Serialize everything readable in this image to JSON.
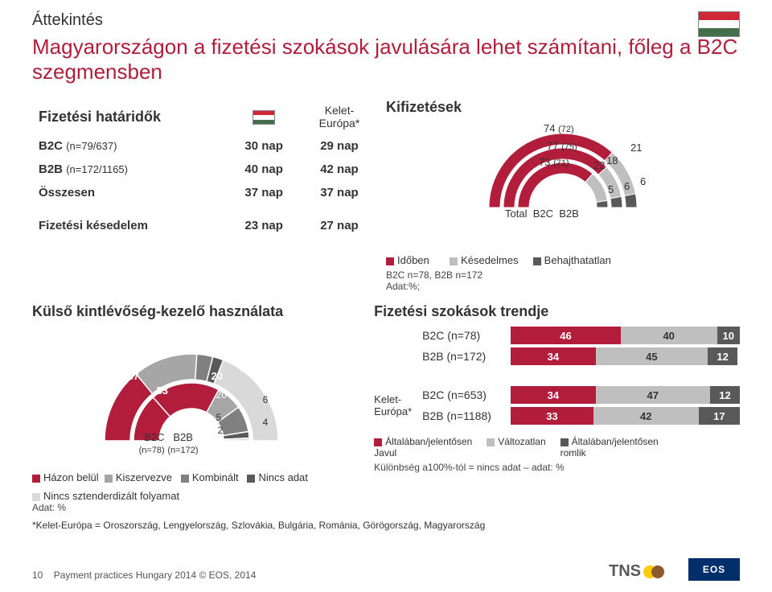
{
  "colors": {
    "brand_red": "#b11d3a",
    "text": "#333333",
    "seg_red": "#b11d3a",
    "seg_grey": "#bfbfbf",
    "seg_dark": "#595959",
    "donut_red": "#b11d3a",
    "donut_grey1": "#a6a6a6",
    "donut_grey2": "#808080",
    "donut_grey3": "#595959",
    "donut_grey4": "#d9d9d9",
    "flag_red": "#ce2939",
    "flag_white": "#ffffff",
    "flag_green": "#436f4d",
    "eos_blue": "#002f6c",
    "tns_yellow": "#ffcc00",
    "tns_brown": "#8b5a2b"
  },
  "header": {
    "overview": "Áttekintés",
    "title": "Magyarországon a fizetési szokások javulására lehet számítani, főleg a B2C szegmensben"
  },
  "terms": {
    "title": "Fizetési határidők",
    "col2_label": "Kelet-\nEurópa*",
    "rows": [
      {
        "label": "B2C",
        "sub": "(n=79/637)",
        "v1": "30 nap",
        "v2": "29 nap"
      },
      {
        "label": "B2B",
        "sub": "(n=172/1165)",
        "v1": "40 nap",
        "v2": "42 nap"
      },
      {
        "label": "Összesen",
        "sub": "",
        "v1": "37 nap",
        "v2": "37 nap"
      }
    ],
    "delay_label": "Fizetési késedelem",
    "delay_v1": "23 nap",
    "delay_v2": "27 nap"
  },
  "payments": {
    "title": "Kifizetések",
    "rings": [
      {
        "name": "Total",
        "ontime": 74,
        "ontime_prev": 72,
        "late": 21,
        "uncollect": 6
      },
      {
        "name": "B2C",
        "ontime": 77,
        "ontime_prev": 75,
        "late": 18,
        "uncollect": 6
      },
      {
        "name": "B2B",
        "ontime": 73,
        "ontime_prev": 71,
        "late": 22,
        "uncollect": 5
      }
    ],
    "axis_labels": [
      "Total",
      "B2C",
      "B2B"
    ],
    "legend": [
      "Időben",
      "Késedelmes",
      "Behajthatatlan"
    ],
    "legend_colors": [
      "#b11d3a",
      "#bfbfbf",
      "#595959"
    ],
    "note": "B2C n=78, B2B n=172\nAdat:%;"
  },
  "external": {
    "title": "Külső kintlévőség-kezelő használata",
    "inner": {
      "name": "B2C",
      "sub": "(n=78)",
      "values": [
        37,
        53,
        20,
        20,
        5,
        2
      ],
      "labels_show": [
        37,
        53,
        20,
        5,
        2
      ]
    },
    "outer": {
      "name": "B2B",
      "sub": "(n=172)",
      "values": [
        28,
        24,
        6,
        4
      ],
      "labels_show": [
        28,
        24,
        6,
        4
      ]
    },
    "legend": [
      {
        "label": "Házon belül",
        "color": "#b11d3a"
      },
      {
        "label": "Kiszervezve",
        "color": "#a6a6a6"
      },
      {
        "label": "Kombinált",
        "color": "#808080"
      },
      {
        "label": "Nincs adat",
        "color": "#595959"
      }
    ],
    "legend2": [
      {
        "label": "Nincs sztenderdizált folyamat",
        "color": "#d9d9d9"
      }
    ],
    "note": "Adat: %"
  },
  "trends": {
    "title": "Fizetési szokások trendje",
    "rows": [
      {
        "group": "",
        "label": "B2C (n=78)",
        "a": 46,
        "b": 40,
        "c": 10
      },
      {
        "group": "",
        "label": "B2B (n=172)",
        "a": 34,
        "b": 45,
        "c": 12
      },
      {
        "group": "Kelet-\nEurópa*",
        "label": "B2C (n=653)",
        "a": 34,
        "b": 47,
        "c": 12
      },
      {
        "group": "Kelet-\nEurópa*",
        "label": "B2B (n=1188)",
        "a": 33,
        "b": 42,
        "c": 17
      }
    ],
    "legend": [
      {
        "label": "Általában/jelentősen\nJavul",
        "color": "#b11d3a"
      },
      {
        "label": "Változatlan",
        "color": "#bfbfbf"
      },
      {
        "label": "Általában/jelentősen\nromlik",
        "color": "#595959"
      }
    ],
    "note": "Különbség a100%-tól = nincs adat – adat: %"
  },
  "footnote": "*Kelet-Európa = Oroszország, Lengyelország, Szlovákia, Bulgária, Románia, Görögország, Magyarország",
  "footer": {
    "page": "10",
    "source": "Payment practices Hungary 2014 © EOS, 2014",
    "tns": "TNS",
    "eos": "EOS"
  }
}
